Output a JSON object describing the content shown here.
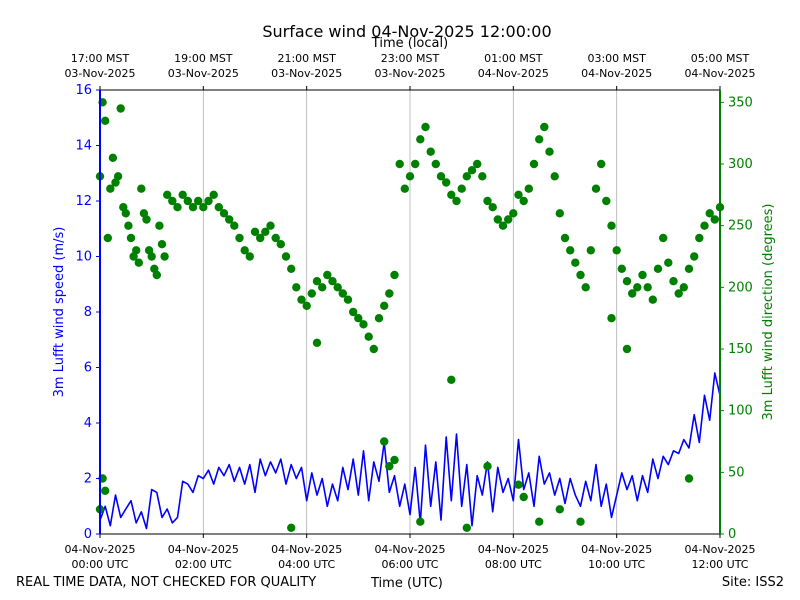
{
  "chart_data": {
    "type": "line+scatter",
    "title": "Surface wind 04-Nov-2025 12:00:00",
    "xlabel_bottom": "Time (UTC)",
    "xlabel_top": "Time (local)",
    "ylabel_left": "3m Lufft wind speed (m/s)",
    "ylabel_right": "3m Lufft wind direction (degrees)",
    "x_range_hours": [
      0,
      12
    ],
    "ylim_left": [
      0,
      16
    ],
    "ylim_right": [
      0,
      360
    ],
    "yticks_left": [
      "0",
      "2",
      "4",
      "6",
      "8",
      "10",
      "12",
      "14",
      "16"
    ],
    "yticks_right": [
      "0",
      "50",
      "100",
      "150",
      "200",
      "250",
      "300",
      "350"
    ],
    "xticks_bottom": [
      {
        "hour": 0,
        "line1": "04-Nov-2025",
        "line2": "00:00 UTC"
      },
      {
        "hour": 2,
        "line1": "04-Nov-2025",
        "line2": "02:00 UTC"
      },
      {
        "hour": 4,
        "line1": "04-Nov-2025",
        "line2": "04:00 UTC"
      },
      {
        "hour": 6,
        "line1": "04-Nov-2025",
        "line2": "06:00 UTC"
      },
      {
        "hour": 8,
        "line1": "04-Nov-2025",
        "line2": "08:00 UTC"
      },
      {
        "hour": 10,
        "line1": "04-Nov-2025",
        "line2": "10:00 UTC"
      },
      {
        "hour": 12,
        "line1": "04-Nov-2025",
        "line2": "12:00 UTC"
      }
    ],
    "xticks_top": [
      {
        "hour": 0,
        "line1": "17:00 MST",
        "line2": "03-Nov-2025"
      },
      {
        "hour": 2,
        "line1": "19:00 MST",
        "line2": "03-Nov-2025"
      },
      {
        "hour": 4,
        "line1": "21:00 MST",
        "line2": "03-Nov-2025"
      },
      {
        "hour": 6,
        "line1": "23:00 MST",
        "line2": "03-Nov-2025"
      },
      {
        "hour": 8,
        "line1": "01:00 MST",
        "line2": "04-Nov-2025"
      },
      {
        "hour": 10,
        "line1": "03:00 MST",
        "line2": "04-Nov-2025"
      },
      {
        "hour": 12,
        "line1": "05:00 MST",
        "line2": "04-Nov-2025"
      }
    ],
    "series": [
      {
        "name": "wind_speed",
        "axis": "left",
        "style": "line",
        "color": "#0000ff",
        "points": [
          [
            0.0,
            0.5
          ],
          [
            0.1,
            1.0
          ],
          [
            0.2,
            0.3
          ],
          [
            0.3,
            1.4
          ],
          [
            0.4,
            0.6
          ],
          [
            0.5,
            0.9
          ],
          [
            0.6,
            1.2
          ],
          [
            0.7,
            0.4
          ],
          [
            0.8,
            0.8
          ],
          [
            0.9,
            0.2
          ],
          [
            1.0,
            1.6
          ],
          [
            1.1,
            1.5
          ],
          [
            1.2,
            0.6
          ],
          [
            1.3,
            0.9
          ],
          [
            1.4,
            0.4
          ],
          [
            1.5,
            0.6
          ],
          [
            1.6,
            1.9
          ],
          [
            1.7,
            1.8
          ],
          [
            1.8,
            1.5
          ],
          [
            1.9,
            2.1
          ],
          [
            2.0,
            2.0
          ],
          [
            2.1,
            2.3
          ],
          [
            2.2,
            1.8
          ],
          [
            2.3,
            2.4
          ],
          [
            2.4,
            2.1
          ],
          [
            2.5,
            2.5
          ],
          [
            2.6,
            1.9
          ],
          [
            2.7,
            2.4
          ],
          [
            2.8,
            1.8
          ],
          [
            2.9,
            2.5
          ],
          [
            3.0,
            1.5
          ],
          [
            3.1,
            2.7
          ],
          [
            3.2,
            2.1
          ],
          [
            3.3,
            2.6
          ],
          [
            3.4,
            2.2
          ],
          [
            3.5,
            2.7
          ],
          [
            3.6,
            1.8
          ],
          [
            3.7,
            2.5
          ],
          [
            3.8,
            2.0
          ],
          [
            3.9,
            2.4
          ],
          [
            4.0,
            1.2
          ],
          [
            4.1,
            2.2
          ],
          [
            4.2,
            1.4
          ],
          [
            4.3,
            2.0
          ],
          [
            4.4,
            1.0
          ],
          [
            4.5,
            1.8
          ],
          [
            4.6,
            1.2
          ],
          [
            4.7,
            2.4
          ],
          [
            4.8,
            1.6
          ],
          [
            4.9,
            2.7
          ],
          [
            5.0,
            1.4
          ],
          [
            5.1,
            3.0
          ],
          [
            5.2,
            1.2
          ],
          [
            5.3,
            2.6
          ],
          [
            5.4,
            1.9
          ],
          [
            5.5,
            3.3
          ],
          [
            5.6,
            1.5
          ],
          [
            5.7,
            2.1
          ],
          [
            5.8,
            1.0
          ],
          [
            5.9,
            1.8
          ],
          [
            6.0,
            0.7
          ],
          [
            6.1,
            2.4
          ],
          [
            6.2,
            0.4
          ],
          [
            6.3,
            3.2
          ],
          [
            6.4,
            1.0
          ],
          [
            6.5,
            2.6
          ],
          [
            6.6,
            0.5
          ],
          [
            6.7,
            3.5
          ],
          [
            6.8,
            1.2
          ],
          [
            6.9,
            3.6
          ],
          [
            7.0,
            1.0
          ],
          [
            7.1,
            2.5
          ],
          [
            7.2,
            0.3
          ],
          [
            7.3,
            2.1
          ],
          [
            7.4,
            1.4
          ],
          [
            7.5,
            2.6
          ],
          [
            7.6,
            0.8
          ],
          [
            7.7,
            2.4
          ],
          [
            7.8,
            1.5
          ],
          [
            7.9,
            2.0
          ],
          [
            8.0,
            1.2
          ],
          [
            8.1,
            3.4
          ],
          [
            8.2,
            1.6
          ],
          [
            8.3,
            2.2
          ],
          [
            8.4,
            1.0
          ],
          [
            8.5,
            2.8
          ],
          [
            8.6,
            1.8
          ],
          [
            8.7,
            2.2
          ],
          [
            8.8,
            1.4
          ],
          [
            8.9,
            2.0
          ],
          [
            9.0,
            1.1
          ],
          [
            9.1,
            2.0
          ],
          [
            9.2,
            1.4
          ],
          [
            9.3,
            1.0
          ],
          [
            9.4,
            1.9
          ],
          [
            9.5,
            1.2
          ],
          [
            9.6,
            2.5
          ],
          [
            9.7,
            1.0
          ],
          [
            9.8,
            1.8
          ],
          [
            9.9,
            0.6
          ],
          [
            10.0,
            1.4
          ],
          [
            10.1,
            2.2
          ],
          [
            10.2,
            1.6
          ],
          [
            10.3,
            2.1
          ],
          [
            10.4,
            1.2
          ],
          [
            10.5,
            2.1
          ],
          [
            10.6,
            1.5
          ],
          [
            10.7,
            2.7
          ],
          [
            10.8,
            2.0
          ],
          [
            10.9,
            2.8
          ],
          [
            11.0,
            2.5
          ],
          [
            11.1,
            3.0
          ],
          [
            11.2,
            2.9
          ],
          [
            11.3,
            3.4
          ],
          [
            11.4,
            3.1
          ],
          [
            11.5,
            4.3
          ],
          [
            11.6,
            3.3
          ],
          [
            11.7,
            5.0
          ],
          [
            11.8,
            4.1
          ],
          [
            11.9,
            5.8
          ],
          [
            12.0,
            5.0
          ]
        ]
      },
      {
        "name": "wind_direction",
        "axis": "right",
        "style": "markers",
        "color": "#008000",
        "points": [
          [
            0.0,
            290
          ],
          [
            0.05,
            350
          ],
          [
            0.1,
            335
          ],
          [
            0.15,
            240
          ],
          [
            0.2,
            280
          ],
          [
            0.25,
            305
          ],
          [
            0.3,
            285
          ],
          [
            0.35,
            290
          ],
          [
            0.4,
            345
          ],
          [
            0.45,
            265
          ],
          [
            0.5,
            260
          ],
          [
            0.55,
            250
          ],
          [
            0.6,
            240
          ],
          [
            0.65,
            225
          ],
          [
            0.7,
            230
          ],
          [
            0.75,
            220
          ],
          [
            0.8,
            280
          ],
          [
            0.85,
            260
          ],
          [
            0.9,
            255
          ],
          [
            0.95,
            230
          ],
          [
            1.0,
            225
          ],
          [
            1.05,
            215
          ],
          [
            1.1,
            210
          ],
          [
            1.15,
            250
          ],
          [
            1.2,
            235
          ],
          [
            1.25,
            225
          ],
          [
            1.3,
            275
          ],
          [
            1.4,
            270
          ],
          [
            1.5,
            265
          ],
          [
            1.6,
            275
          ],
          [
            1.7,
            270
          ],
          [
            1.8,
            265
          ],
          [
            1.9,
            270
          ],
          [
            2.0,
            265
          ],
          [
            2.1,
            270
          ],
          [
            2.2,
            275
          ],
          [
            2.3,
            265
          ],
          [
            2.4,
            260
          ],
          [
            2.5,
            255
          ],
          [
            2.6,
            250
          ],
          [
            2.7,
            240
          ],
          [
            2.8,
            230
          ],
          [
            2.9,
            225
          ],
          [
            3.0,
            245
          ],
          [
            3.1,
            240
          ],
          [
            3.2,
            245
          ],
          [
            3.3,
            250
          ],
          [
            3.4,
            240
          ],
          [
            3.5,
            235
          ],
          [
            3.6,
            225
          ],
          [
            3.7,
            215
          ],
          [
            3.8,
            200
          ],
          [
            3.9,
            190
          ],
          [
            4.0,
            185
          ],
          [
            4.1,
            195
          ],
          [
            4.2,
            205
          ],
          [
            4.3,
            200
          ],
          [
            4.4,
            210
          ],
          [
            4.5,
            205
          ],
          [
            4.6,
            200
          ],
          [
            4.7,
            195
          ],
          [
            4.8,
            190
          ],
          [
            4.9,
            180
          ],
          [
            5.0,
            175
          ],
          [
            5.1,
            170
          ],
          [
            5.2,
            160
          ],
          [
            5.3,
            150
          ],
          [
            5.4,
            175
          ],
          [
            5.5,
            185
          ],
          [
            5.6,
            195
          ],
          [
            5.7,
            210
          ],
          [
            5.8,
            300
          ],
          [
            5.9,
            280
          ],
          [
            6.0,
            290
          ],
          [
            6.1,
            300
          ],
          [
            6.2,
            320
          ],
          [
            6.3,
            330
          ],
          [
            6.4,
            310
          ],
          [
            6.5,
            300
          ],
          [
            6.6,
            290
          ],
          [
            6.7,
            285
          ],
          [
            6.8,
            275
          ],
          [
            6.9,
            270
          ],
          [
            7.0,
            280
          ],
          [
            7.1,
            290
          ],
          [
            7.2,
            295
          ],
          [
            7.3,
            300
          ],
          [
            7.4,
            290
          ],
          [
            7.5,
            270
          ],
          [
            7.6,
            265
          ],
          [
            7.7,
            255
          ],
          [
            7.8,
            250
          ],
          [
            7.9,
            255
          ],
          [
            8.0,
            260
          ],
          [
            8.1,
            275
          ],
          [
            8.2,
            270
          ],
          [
            8.3,
            280
          ],
          [
            8.4,
            300
          ],
          [
            8.5,
            320
          ],
          [
            8.6,
            330
          ],
          [
            8.7,
            310
          ],
          [
            8.8,
            290
          ],
          [
            8.9,
            260
          ],
          [
            9.0,
            240
          ],
          [
            9.1,
            230
          ],
          [
            9.2,
            220
          ],
          [
            9.3,
            210
          ],
          [
            9.4,
            200
          ],
          [
            9.5,
            230
          ],
          [
            9.6,
            280
          ],
          [
            9.7,
            300
          ],
          [
            9.8,
            270
          ],
          [
            9.9,
            250
          ],
          [
            10.0,
            230
          ],
          [
            10.1,
            215
          ],
          [
            10.2,
            205
          ],
          [
            10.3,
            195
          ],
          [
            10.4,
            200
          ],
          [
            10.5,
            210
          ],
          [
            10.6,
            200
          ],
          [
            10.7,
            190
          ],
          [
            10.8,
            215
          ],
          [
            10.9,
            240
          ],
          [
            11.0,
            220
          ],
          [
            11.1,
            205
          ],
          [
            11.2,
            195
          ],
          [
            11.3,
            200
          ],
          [
            11.4,
            215
          ],
          [
            11.5,
            225
          ],
          [
            11.6,
            240
          ],
          [
            11.7,
            250
          ],
          [
            11.8,
            260
          ],
          [
            11.9,
            255
          ],
          [
            12.0,
            265
          ],
          [
            0.0,
            20
          ],
          [
            0.05,
            45
          ],
          [
            0.1,
            35
          ],
          [
            3.7,
            5
          ],
          [
            5.5,
            75
          ],
          [
            5.6,
            55
          ],
          [
            5.7,
            60
          ],
          [
            6.2,
            10
          ],
          [
            7.1,
            5
          ],
          [
            7.5,
            55
          ],
          [
            8.1,
            40
          ],
          [
            8.2,
            30
          ],
          [
            8.5,
            10
          ],
          [
            8.9,
            20
          ],
          [
            9.3,
            10
          ],
          [
            9.9,
            175
          ],
          [
            10.2,
            150
          ],
          [
            11.4,
            45
          ],
          [
            4.2,
            155
          ],
          [
            6.8,
            125
          ]
        ]
      }
    ]
  },
  "footer": {
    "left": "REAL TIME DATA, NOT CHECKED FOR QUALITY",
    "center": "Time (UTC)",
    "right": "Site: ISS2"
  }
}
